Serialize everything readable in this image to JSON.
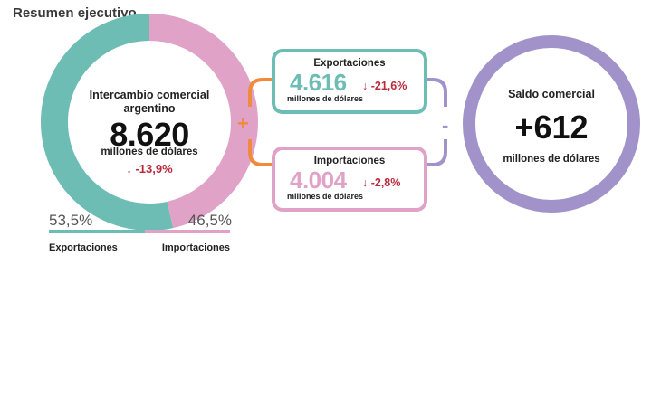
{
  "header": {
    "title": "Resumen ejecutivo"
  },
  "colors": {
    "exportaciones": "#6dbdb5",
    "importaciones": "#e0a3c7",
    "saldo": "#a193c9",
    "connector": "#f08a3c",
    "negative": "#b82a3a"
  },
  "intercambio": {
    "label": "Intercambio comercial argentino",
    "value": "8.620",
    "unit": "millones de dólares",
    "change": "↓ -13,9%"
  },
  "shares": {
    "export_pct": "53,5%",
    "import_pct": "46,5%",
    "export_label": "Exportaciones",
    "import_label": "Importaciones",
    "export_fraction": 0.535,
    "import_fraction": 0.465
  },
  "exportaciones": {
    "title": "Exportaciones",
    "value": "4.616",
    "unit": "millones de dólares",
    "change": "↓ -21,6%"
  },
  "importaciones": {
    "title": "Importaciones",
    "value": "4.004",
    "unit": "millones de dólares",
    "change": "↓ -2,8%"
  },
  "operators": {
    "plus": "+",
    "minus": "-"
  },
  "saldo": {
    "label": "Saldo comercial",
    "value": "+612",
    "unit": "millones de dólares"
  }
}
